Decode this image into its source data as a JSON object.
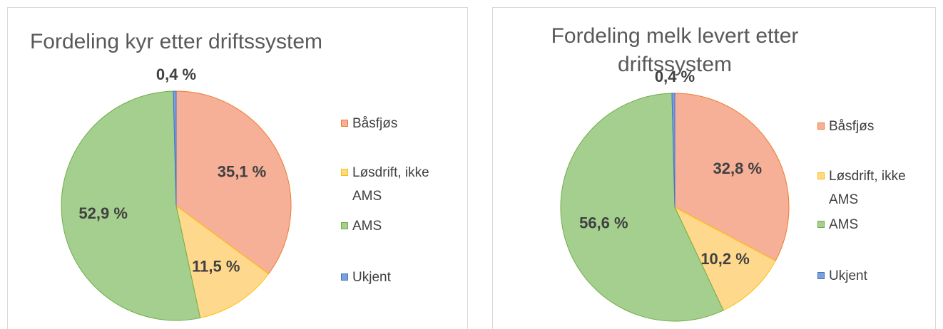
{
  "chart_data": [
    {
      "type": "pie",
      "title": "Fordeling kyr etter driftssystem",
      "categories": [
        "Båsfjøs",
        "Løsdrift, ikke AMS",
        "AMS",
        "Ukjent"
      ],
      "values": [
        35.1,
        11.5,
        52.9,
        0.4
      ],
      "value_labels": [
        "35,1 %",
        "11,5 %",
        "52,9 %",
        "0,4 %"
      ],
      "colors": [
        "#f5b097",
        "#fed88c",
        "#a5cf8f",
        "#7c9fdc"
      ],
      "edge_colors": [
        "#ed7d31",
        "#ffc000",
        "#70ad47",
        "#4472c4"
      ],
      "legend": "right"
    },
    {
      "type": "pie",
      "title": "Fordeling melk levert etter driftssystem",
      "categories": [
        "Båsfjøs",
        "Løsdrift, ikke AMS",
        "AMS",
        "Ukjent"
      ],
      "values": [
        32.8,
        10.2,
        56.6,
        0.4
      ],
      "value_labels": [
        "32,8 %",
        "10,2 %",
        "56,6 %",
        "0,4 %"
      ],
      "colors": [
        "#f5b097",
        "#fed88c",
        "#a5cf8f",
        "#7c9fdc"
      ],
      "edge_colors": [
        "#ed7d31",
        "#ffc000",
        "#70ad47",
        "#4472c4"
      ],
      "legend": "right"
    }
  ]
}
